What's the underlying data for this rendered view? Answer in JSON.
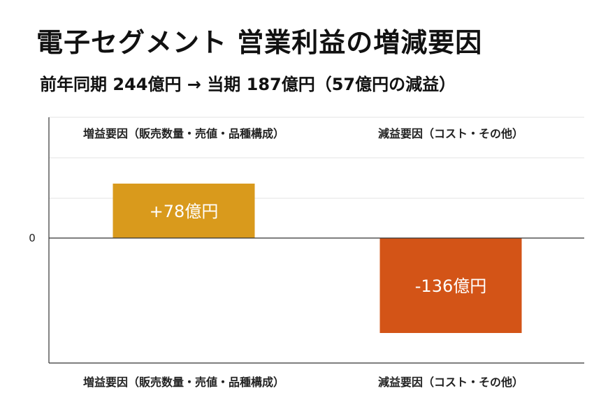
{
  "title": "電子セグメント 営業利益の増減要因",
  "subtitle": "前年同期 244億円 → 当期 187億円（57億円の減益）",
  "chart_data": {
    "type": "bar",
    "categories": [
      "増益要因（販売数量・売値・品種構成）",
      "減益要因（コスト・その他）"
    ],
    "values": [
      78,
      -136
    ],
    "data_labels": [
      "+78億円",
      "-136億円"
    ],
    "colors": [
      "#D99A1C",
      "#D35417"
    ],
    "zero_tick_label": "0",
    "ylim": [
      -150,
      100
    ],
    "grid": true,
    "legend": "none"
  }
}
